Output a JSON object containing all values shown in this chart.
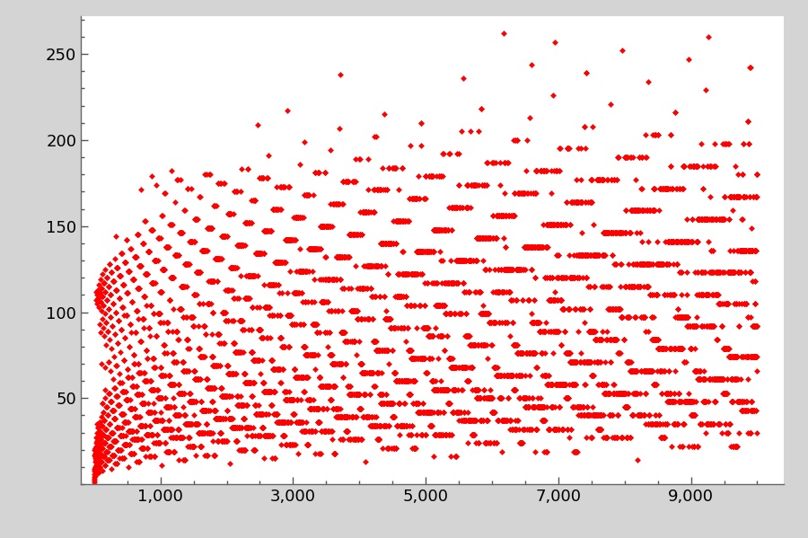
{
  "n_max": 10000,
  "figure_bg_color": "#d4d4d4",
  "plot_bg_color": "#ffffff",
  "marker_color": "#ff0000",
  "marker": "D",
  "marker_size": 12,
  "marker_linewidth": 0,
  "xlim": [
    -200,
    10400
  ],
  "ylim": [
    0,
    272
  ],
  "xticks": [
    1000,
    3000,
    5000,
    7000,
    9000
  ],
  "yticks": [
    50,
    100,
    150,
    200,
    250
  ],
  "tick_label_fontsize": 13,
  "spine_color": "#666666",
  "figsize": [
    9.0,
    5.99
  ],
  "dpi": 100
}
